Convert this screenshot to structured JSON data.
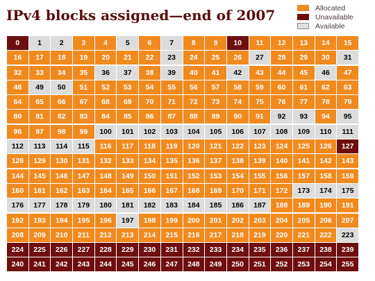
{
  "title": "IPv4 blocks assigned—end of 2007",
  "legend": {
    "allocated": "Allocated",
    "unavailable": "Unavailable",
    "available": "Available"
  },
  "colors": {
    "allocated": "#f18a1e",
    "unavailable": "#6e0e0e",
    "available": "#dcdcdc"
  },
  "chart_data": {
    "type": "table",
    "title": "IPv4 blocks assigned—end of 2007",
    "rows": 16,
    "columns": 16,
    "categories": [
      "Allocated",
      "Unavailable",
      "Available"
    ],
    "unavailable": [
      0,
      10,
      127,
      224,
      225,
      226,
      227,
      228,
      229,
      230,
      231,
      232,
      233,
      234,
      235,
      236,
      237,
      238,
      239,
      240,
      241,
      242,
      243,
      244,
      245,
      246,
      247,
      248,
      249,
      250,
      251,
      252,
      253,
      254,
      255
    ],
    "available": [
      1,
      2,
      5,
      7,
      23,
      27,
      31,
      36,
      37,
      39,
      42,
      46,
      49,
      50,
      92,
      93,
      95,
      100,
      101,
      102,
      103,
      104,
      105,
      106,
      107,
      108,
      109,
      110,
      111,
      112,
      113,
      114,
      115,
      173,
      174,
      175,
      176,
      177,
      178,
      179,
      180,
      181,
      182,
      183,
      184,
      185,
      186,
      187,
      197,
      223
    ],
    "allocated_count": 171,
    "unavailable_count": 35,
    "available_count": 50
  }
}
